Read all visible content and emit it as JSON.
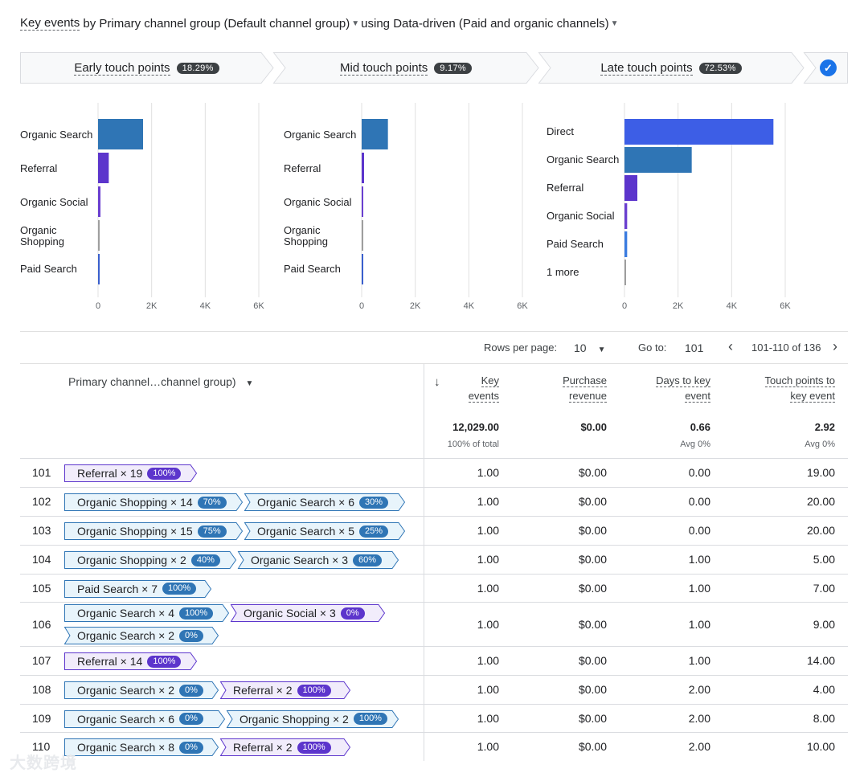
{
  "header": {
    "metric": "Key events",
    "by": "by",
    "dimension": "Primary channel group (Default channel group)",
    "using": "using",
    "model": "Data-driven (Paid and organic channels)"
  },
  "touch_tabs": [
    {
      "label": "Early touch points",
      "pct": "18.29%"
    },
    {
      "label": "Mid touch points",
      "pct": "9.17%"
    },
    {
      "label": "Late touch points",
      "pct": "72.53%"
    }
  ],
  "chart_data": [
    {
      "type": "bar",
      "orientation": "horizontal",
      "categories": [
        "Organic Search",
        "Referral",
        "Organic Social",
        "Organic Shopping",
        "Paid Search"
      ],
      "values": [
        1680,
        400,
        90,
        40,
        40
      ],
      "xlim": [
        0,
        6000
      ],
      "xticks": [
        "0",
        "2K",
        "4K",
        "6K"
      ],
      "colors": [
        "#2f75b5",
        "#5c35cc",
        "#6a3fd0",
        "#9e9e9e",
        "#3a5fcd"
      ]
    },
    {
      "type": "bar",
      "orientation": "horizontal",
      "categories": [
        "Organic Search",
        "Referral",
        "Organic Social",
        "Organic Shopping",
        "Paid Search"
      ],
      "values": [
        980,
        90,
        40,
        20,
        30
      ],
      "xlim": [
        0,
        6000
      ],
      "xticks": [
        "0",
        "2K",
        "4K",
        "6K"
      ],
      "colors": [
        "#2f75b5",
        "#5c35cc",
        "#6a3fd0",
        "#9e9e9e",
        "#3a5fcd"
      ]
    },
    {
      "type": "bar",
      "orientation": "horizontal",
      "categories": [
        "Direct",
        "Organic Search",
        "Referral",
        "Organic Social",
        "Paid Search",
        "1 more"
      ],
      "values": [
        5560,
        2510,
        480,
        100,
        100,
        60
      ],
      "xlim": [
        0,
        6000
      ],
      "xticks": [
        "0",
        "2K",
        "4K",
        "6K"
      ],
      "colors": [
        "#3d5ee6",
        "#2f75b5",
        "#5c35cc",
        "#6a3fd0",
        "#3a7be0",
        "#9e9e9e"
      ]
    }
  ],
  "pagination": {
    "rows_label": "Rows per page:",
    "rows_value": "10",
    "goto_label": "Go to:",
    "goto_value": "101",
    "range": "101-110 of 136"
  },
  "table": {
    "dimension_header": "Primary channel…channel group)",
    "columns": [
      {
        "l1": "Key",
        "l2": "events",
        "total": "12,029.00",
        "sub": "100% of total"
      },
      {
        "l1": "Purchase",
        "l2": "revenue",
        "total": "$0.00",
        "sub": ""
      },
      {
        "l1": "Days to key",
        "l2": "event",
        "total": "0.66",
        "sub": "Avg 0%"
      },
      {
        "l1": "Touch points to",
        "l2": "key event",
        "total": "2.92",
        "sub": "Avg 0%"
      }
    ],
    "rows": [
      {
        "num": "101",
        "path": [
          {
            "label": "Referral × 19",
            "pct": "100%",
            "kind": "ref"
          }
        ],
        "values": [
          "1.00",
          "$0.00",
          "0.00",
          "19.00"
        ]
      },
      {
        "num": "102",
        "path": [
          {
            "label": "Organic Shopping × 14",
            "pct": "70%",
            "kind": "org"
          },
          {
            "label": "Organic Search × 6",
            "pct": "30%",
            "kind": "org"
          }
        ],
        "values": [
          "1.00",
          "$0.00",
          "0.00",
          "20.00"
        ]
      },
      {
        "num": "103",
        "path": [
          {
            "label": "Organic Shopping × 15",
            "pct": "75%",
            "kind": "org"
          },
          {
            "label": "Organic Search × 5",
            "pct": "25%",
            "kind": "org"
          }
        ],
        "values": [
          "1.00",
          "$0.00",
          "0.00",
          "20.00"
        ]
      },
      {
        "num": "104",
        "path": [
          {
            "label": "Organic Shopping × 2",
            "pct": "40%",
            "kind": "org"
          },
          {
            "label": "Organic Search × 3",
            "pct": "60%",
            "kind": "org"
          }
        ],
        "values": [
          "1.00",
          "$0.00",
          "1.00",
          "5.00"
        ]
      },
      {
        "num": "105",
        "path": [
          {
            "label": "Paid Search × 7",
            "pct": "100%",
            "kind": "org"
          }
        ],
        "values": [
          "1.00",
          "$0.00",
          "1.00",
          "7.00"
        ]
      },
      {
        "num": "106",
        "path": [
          {
            "label": "Organic Search × 4",
            "pct": "100%",
            "kind": "org"
          },
          {
            "label": "Organic Social × 3",
            "pct": "0%",
            "kind": "ref"
          },
          {
            "label": "Organic Search × 2",
            "pct": "0%",
            "kind": "org"
          }
        ],
        "values": [
          "1.00",
          "$0.00",
          "1.00",
          "9.00"
        ]
      },
      {
        "num": "107",
        "path": [
          {
            "label": "Referral × 14",
            "pct": "100%",
            "kind": "ref"
          }
        ],
        "values": [
          "1.00",
          "$0.00",
          "1.00",
          "14.00"
        ]
      },
      {
        "num": "108",
        "path": [
          {
            "label": "Organic Search × 2",
            "pct": "0%",
            "kind": "org"
          },
          {
            "label": "Referral × 2",
            "pct": "100%",
            "kind": "ref"
          }
        ],
        "values": [
          "1.00",
          "$0.00",
          "2.00",
          "4.00"
        ]
      },
      {
        "num": "109",
        "path": [
          {
            "label": "Organic Search × 6",
            "pct": "0%",
            "kind": "org"
          },
          {
            "label": "Organic Shopping × 2",
            "pct": "100%",
            "kind": "org"
          }
        ],
        "values": [
          "1.00",
          "$0.00",
          "2.00",
          "8.00"
        ]
      },
      {
        "num": "110",
        "path": [
          {
            "label": "Organic Search × 8",
            "pct": "0%",
            "kind": "org"
          },
          {
            "label": "Referral × 2",
            "pct": "100%",
            "kind": "ref"
          }
        ],
        "values": [
          "1.00",
          "$0.00",
          "2.00",
          "10.00"
        ]
      }
    ]
  },
  "watermark": "大数跨境",
  "colors": {
    "accent": "#1a73e8",
    "org_fill": "#e8f4fb",
    "org_stroke": "#2f75b5",
    "org_pill": "#2f75b5",
    "ref_fill": "#f1ecfb",
    "ref_stroke": "#5c35cc",
    "ref_pill": "#5c35cc"
  }
}
